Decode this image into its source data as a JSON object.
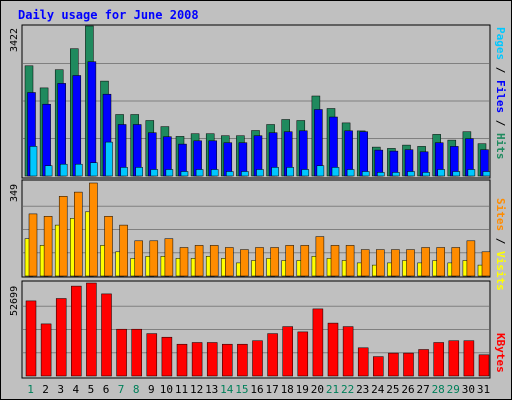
{
  "page": {
    "title": "Daily usage for June 2008"
  },
  "colors": {
    "hits": "#1f8a5e",
    "files": "#0000ff",
    "pages": "#00c8ff",
    "visits": "#ffff00",
    "sites": "#ff8c00",
    "kbytes": "#ff0000",
    "weekend_label": "#00805a",
    "weekday_label": "#000000",
    "background": "#c0c0c0",
    "title": "#0000ff"
  },
  "chart_data": [
    {
      "type": "bar",
      "panel": "hits-files-pages",
      "categories": [
        "1",
        "2",
        "3",
        "4",
        "5",
        "6",
        "7",
        "8",
        "9",
        "10",
        "11",
        "12",
        "13",
        "14",
        "15",
        "16",
        "17",
        "18",
        "19",
        "20",
        "21",
        "22",
        "23",
        "24",
        "25",
        "26",
        "27",
        "28",
        "29",
        "30",
        "31"
      ],
      "y_max_label": "3422",
      "ylim": [
        0,
        3422
      ],
      "legend": [
        {
          "key": "pages",
          "label": "Pages"
        },
        {
          "key": "files",
          "label": "Files"
        },
        {
          "key": "hits",
          "label": "Hits"
        }
      ],
      "series": [
        {
          "name": "Hits",
          "values": [
            2515,
            2010,
            2424,
            2903,
            3422,
            2165,
            1404,
            1404,
            1266,
            1128,
            903,
            964,
            964,
            919,
            919,
            1037,
            1174,
            1289,
            1266,
            1824,
            1540,
            1212,
            1030,
            659,
            629,
            705,
            675,
            949,
            819,
            1010,
            736
          ]
        },
        {
          "name": "Files",
          "values": [
            1904,
            1638,
            2112,
            2292,
            2608,
            1865,
            1175,
            1175,
            987,
            896,
            728,
            804,
            804,
            759,
            759,
            919,
            987,
            1010,
            1032,
            1517,
            1345,
            1032,
            1010,
            591,
            568,
            599,
            553,
            759,
            675,
            850,
            599
          ]
        },
        {
          "name": "Pages",
          "values": [
            675,
            234,
            270,
            270,
            303,
            773,
            196,
            196,
            148,
            148,
            102,
            148,
            148,
            102,
            102,
            148,
            196,
            196,
            148,
            234,
            196,
            148,
            102,
            81,
            81,
            102,
            81,
            148,
            102,
            148,
            102
          ]
        }
      ]
    },
    {
      "type": "bar",
      "panel": "sites-visits",
      "categories": [
        "1",
        "2",
        "3",
        "4",
        "5",
        "6",
        "7",
        "8",
        "9",
        "10",
        "11",
        "12",
        "13",
        "14",
        "15",
        "16",
        "17",
        "18",
        "19",
        "20",
        "21",
        "22",
        "23",
        "24",
        "25",
        "26",
        "27",
        "28",
        "29",
        "30",
        "31"
      ],
      "y_max_label": "349",
      "ylim": [
        0,
        349
      ],
      "legend": [
        {
          "key": "sites",
          "label": "Sites"
        },
        {
          "key": "visits",
          "label": "Visits"
        }
      ],
      "series": [
        {
          "name": "Sites",
          "values": [
            233,
            224,
            299,
            315,
            349,
            224,
            191,
            132,
            132,
            140,
            107,
            115,
            115,
            107,
            99,
            107,
            107,
            115,
            115,
            148,
            115,
            115,
            99,
            99,
            99,
            99,
            107,
            107,
            107,
            132,
            91
          ]
        },
        {
          "name": "Visits",
          "values": [
            140,
            115,
            191,
            216,
            241,
            115,
            91,
            66,
            74,
            74,
            66,
            66,
            74,
            66,
            49,
            58,
            66,
            58,
            58,
            74,
            66,
            58,
            49,
            41,
            49,
            58,
            49,
            58,
            49,
            58,
            41
          ]
        }
      ]
    },
    {
      "type": "bar",
      "panel": "kbytes",
      "categories": [
        "1",
        "2",
        "3",
        "4",
        "5",
        "6",
        "7",
        "8",
        "9",
        "10",
        "11",
        "12",
        "13",
        "14",
        "15",
        "16",
        "17",
        "18",
        "19",
        "20",
        "21",
        "22",
        "23",
        "24",
        "25",
        "26",
        "27",
        "28",
        "29",
        "30",
        "31"
      ],
      "y_max_label": "52699",
      "ylim": [
        0,
        52699
      ],
      "legend": [
        {
          "key": "kbytes",
          "label": "KBytes"
        }
      ],
      "series": [
        {
          "name": "KBytes",
          "values": [
            42575,
            29500,
            43941,
            50946,
            52699,
            46500,
            26500,
            26500,
            24000,
            22000,
            18000,
            19000,
            19000,
            18000,
            18000,
            20000,
            24000,
            28000,
            25000,
            38000,
            30000,
            28000,
            16000,
            11000,
            13000,
            13000,
            15000,
            19000,
            20000,
            20000,
            12000
          ]
        }
      ]
    }
  ]
}
